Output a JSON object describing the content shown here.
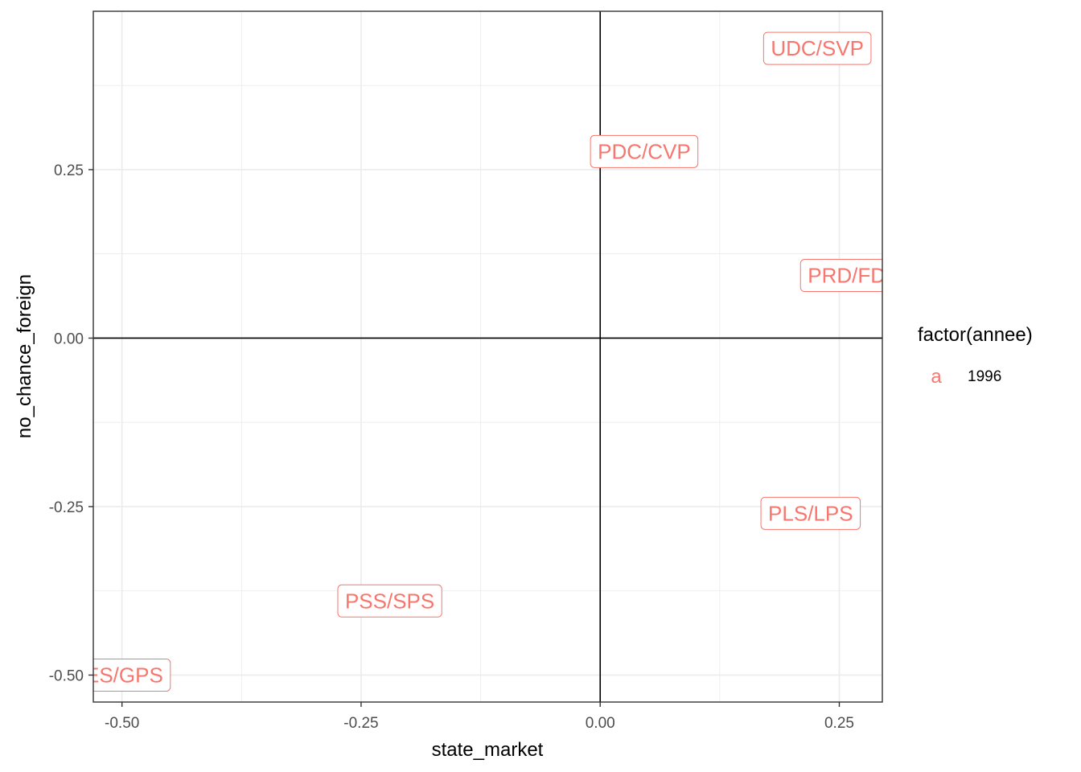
{
  "chart_data": {
    "type": "scatter",
    "xlabel": "state_market",
    "ylabel": "no_chance_foreign",
    "xlim": [
      -0.53,
      0.295
    ],
    "ylim": [
      -0.54,
      0.485
    ],
    "x_ticks": [
      -0.5,
      -0.25,
      0.0,
      0.25
    ],
    "x_tick_labels": [
      "-0.50",
      "-0.25",
      "0.00",
      "0.25"
    ],
    "y_ticks": [
      -0.5,
      -0.25,
      0.0,
      0.25
    ],
    "y_tick_labels": [
      "-0.50",
      "-0.25",
      "0.00",
      "0.25"
    ],
    "grid": true,
    "reference_lines": {
      "x": 0,
      "y": 0
    },
    "series": [
      {
        "name": "1996",
        "color": "#F8766D",
        "points": [
          {
            "label": "UDC/SVP",
            "x": 0.227,
            "y": 0.43
          },
          {
            "label": "PDC/CVP",
            "x": 0.046,
            "y": 0.277
          },
          {
            "label": "PRD/FDP",
            "x": 0.265,
            "y": 0.093
          },
          {
            "label": "PLS/LPS",
            "x": 0.22,
            "y": -0.26
          },
          {
            "label": "PSS/SPS",
            "x": -0.22,
            "y": -0.39
          },
          {
            "label": "PES/GPS",
            "x": -0.505,
            "y": -0.5
          }
        ]
      }
    ],
    "legend": {
      "title": "factor(annee)",
      "position": "right",
      "key_glyph": "a",
      "entries": [
        "1996"
      ]
    }
  }
}
